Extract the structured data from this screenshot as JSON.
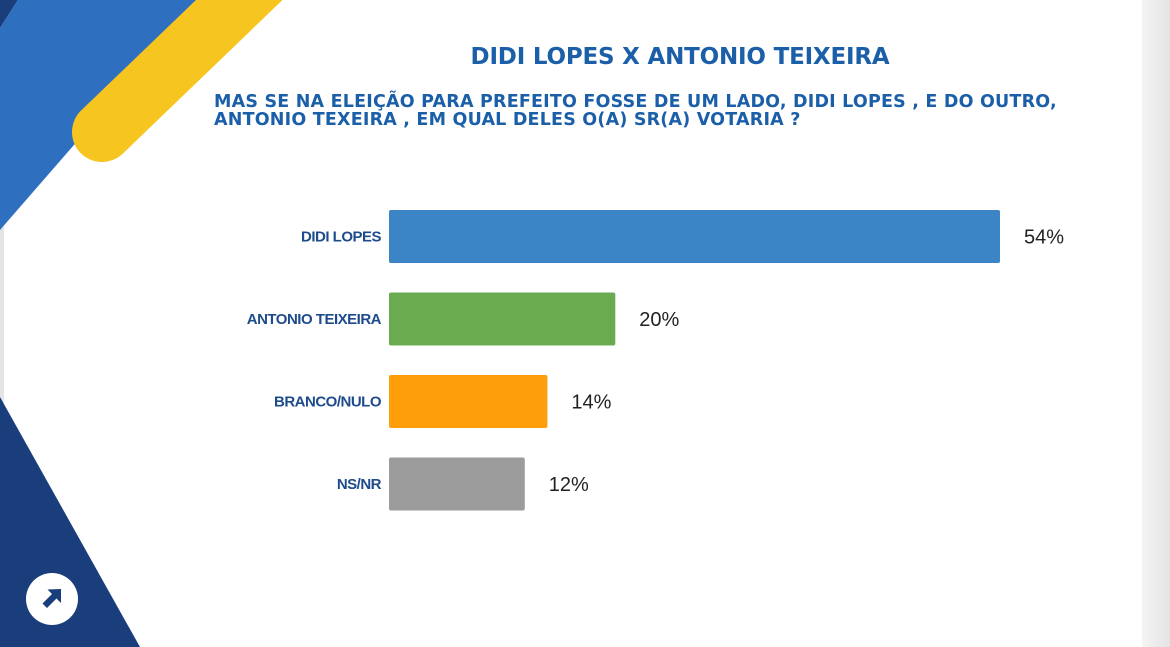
{
  "title": "DIDI LOPES X ANTONIO TEIXEIRA",
  "question": "MAS SE NA ELEIÇÃO PARA PREFEITO FOSSE DE UM LADO, DIDI LOPES , E DO OUTRO, ANTONIO TEXEIRA , EM QUAL DELES O(A) SR(A) VOTARIA ?",
  "colors": {
    "accent_blue": "#1b5fa9",
    "deco_dark_blue": "#1a3e7c",
    "deco_mid_blue": "#2f6fc0",
    "deco_yellow": "#f7c520"
  },
  "corner_button": {
    "icon": "arrow-up-right-icon"
  },
  "chart_data": {
    "type": "bar",
    "orientation": "horizontal",
    "categories": [
      "DIDI LOPES",
      "ANTONIO TEIXEIRA",
      "BRANCO/NULO",
      "NS/NR"
    ],
    "values": [
      54,
      20,
      14,
      12
    ],
    "value_labels": [
      "54%",
      "20%",
      "14%",
      "12%"
    ],
    "bar_colors": [
      "#3b84c6",
      "#6aab50",
      "#ff9e0b",
      "#9c9c9c"
    ],
    "xlim": [
      0,
      54
    ],
    "grid": false,
    "legend": "none"
  }
}
